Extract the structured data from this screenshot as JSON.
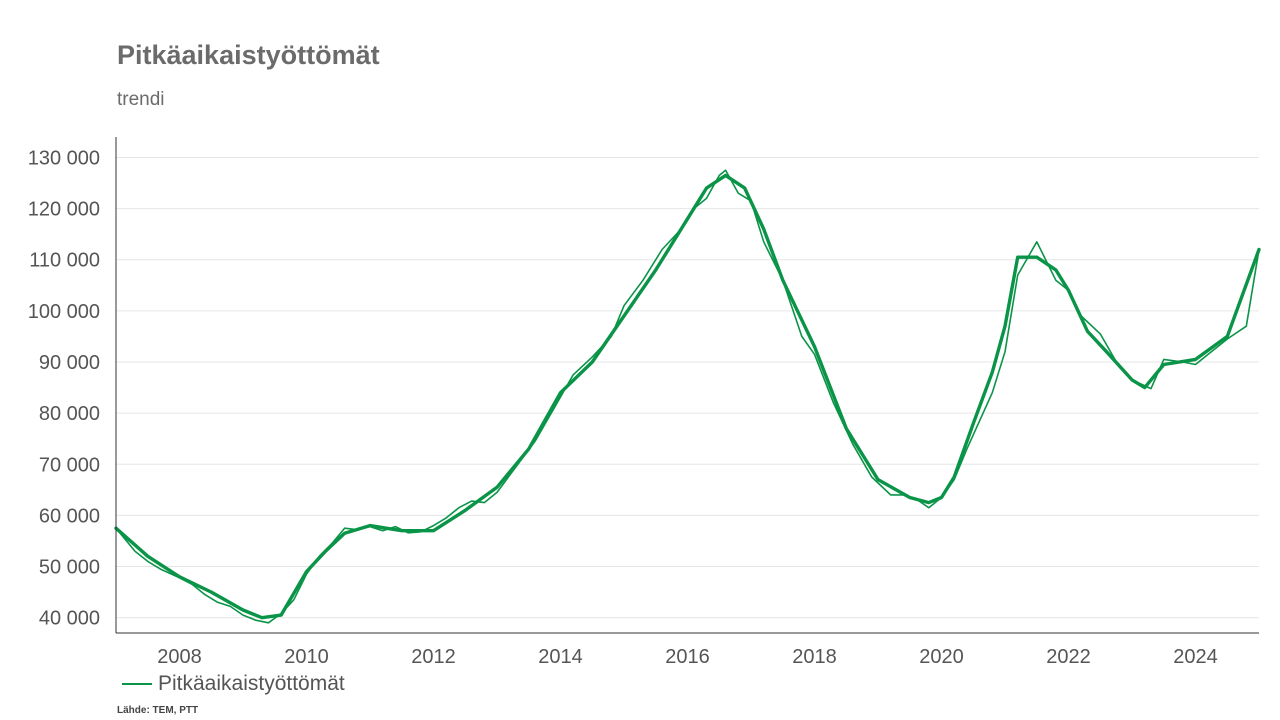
{
  "title": "Pitkäaikaistyöttömät",
  "subtitle": "trendi",
  "source": "Lähde: TEM, PTT",
  "chart_data": {
    "type": "line",
    "title": "Pitkäaikaistyöttömät",
    "subtitle": "trendi",
    "xlim": [
      2007.0,
      2025.0
    ],
    "ylim": [
      37000,
      134000
    ],
    "xticks": [
      2008,
      2010,
      2012,
      2014,
      2016,
      2018,
      2020,
      2022,
      2024
    ],
    "yticks": [
      40000,
      50000,
      60000,
      70000,
      80000,
      90000,
      100000,
      110000,
      120000,
      130000
    ],
    "ytick_labels": [
      "40 000",
      "50 000",
      "60 000",
      "70 000",
      "80 000",
      "90 000",
      "100 000",
      "110 000",
      "120 000",
      "130 000"
    ],
    "grid": "horizontal",
    "legend_position": "bottom-left",
    "colors": {
      "series": "#0a9448",
      "grid": "#e6e6e6",
      "axis": "#333333"
    },
    "series": [
      {
        "name": "Pitkäaikaistyöttömät",
        "style": "thick",
        "x": [
          2007.0,
          2007.5,
          2008.0,
          2008.5,
          2009.0,
          2009.3,
          2009.6,
          2010.0,
          2010.3,
          2010.6,
          2011.0,
          2011.5,
          2012.0,
          2012.5,
          2013.0,
          2013.5,
          2014.0,
          2014.5,
          2015.0,
          2015.5,
          2016.0,
          2016.3,
          2016.6,
          2016.9,
          2017.2,
          2017.5,
          2018.0,
          2018.5,
          2019.0,
          2019.5,
          2019.8,
          2020.0,
          2020.2,
          2020.5,
          2020.8,
          2021.0,
          2021.2,
          2021.5,
          2021.8,
          2022.0,
          2022.3,
          2022.6,
          2023.0,
          2023.2,
          2023.5,
          2024.0,
          2024.5,
          2025.0
        ],
        "values": [
          57500,
          52000,
          48000,
          45000,
          41500,
          40000,
          40500,
          49000,
          53000,
          56500,
          58000,
          57000,
          57000,
          61000,
          65500,
          73000,
          84000,
          90000,
          99000,
          108000,
          118000,
          124000,
          126500,
          124000,
          116000,
          106000,
          93000,
          77000,
          67000,
          63500,
          62500,
          63500,
          67500,
          78000,
          88000,
          97000,
          110500,
          110500,
          108000,
          104000,
          96000,
          92000,
          86500,
          85000,
          89500,
          90500,
          95000,
          112000
        ]
      },
      {
        "name": "Pitkäaikaistyöttömät",
        "style": "thin",
        "x": [
          2007.0,
          2007.3,
          2007.5,
          2007.7,
          2008.0,
          2008.2,
          2008.4,
          2008.6,
          2008.8,
          2009.0,
          2009.2,
          2009.4,
          2009.6,
          2009.8,
          2010.0,
          2010.2,
          2010.4,
          2010.6,
          2010.8,
          2011.0,
          2011.2,
          2011.4,
          2011.6,
          2011.8,
          2012.0,
          2012.2,
          2012.4,
          2012.6,
          2012.8,
          2013.0,
          2013.3,
          2013.6,
          2013.9,
          2014.2,
          2014.5,
          2014.8,
          2015.0,
          2015.3,
          2015.6,
          2015.9,
          2016.1,
          2016.3,
          2016.5,
          2016.6,
          2016.8,
          2017.0,
          2017.2,
          2017.5,
          2017.8,
          2018.0,
          2018.3,
          2018.6,
          2018.9,
          2019.2,
          2019.4,
          2019.6,
          2019.8,
          2020.0,
          2020.2,
          2020.4,
          2020.6,
          2020.8,
          2021.0,
          2021.2,
          2021.5,
          2021.8,
          2022.0,
          2022.2,
          2022.5,
          2022.8,
          2023.0,
          2023.3,
          2023.5,
          2023.8,
          2024.0,
          2024.2,
          2024.5,
          2024.8,
          2025.0
        ],
        "values": [
          57500,
          53000,
          51000,
          49500,
          47800,
          46500,
          44500,
          43000,
          42200,
          40500,
          39500,
          39000,
          40800,
          43500,
          48500,
          52000,
          54500,
          57500,
          57200,
          57800,
          57000,
          57800,
          56600,
          56800,
          58000,
          59500,
          61500,
          62800,
          62500,
          64500,
          69500,
          74500,
          81000,
          87500,
          91000,
          95000,
          101000,
          106000,
          112000,
          116000,
          120000,
          122000,
          126500,
          127500,
          123000,
          121500,
          113500,
          106000,
          95000,
          91500,
          82000,
          74000,
          67500,
          64000,
          64000,
          63200,
          61500,
          63500,
          67000,
          73000,
          78500,
          84000,
          92000,
          107000,
          113500,
          106000,
          104000,
          99000,
          95500,
          89000,
          86500,
          84800,
          90500,
          90000,
          89500,
          91500,
          94500,
          97000,
          112000
        ]
      }
    ]
  }
}
